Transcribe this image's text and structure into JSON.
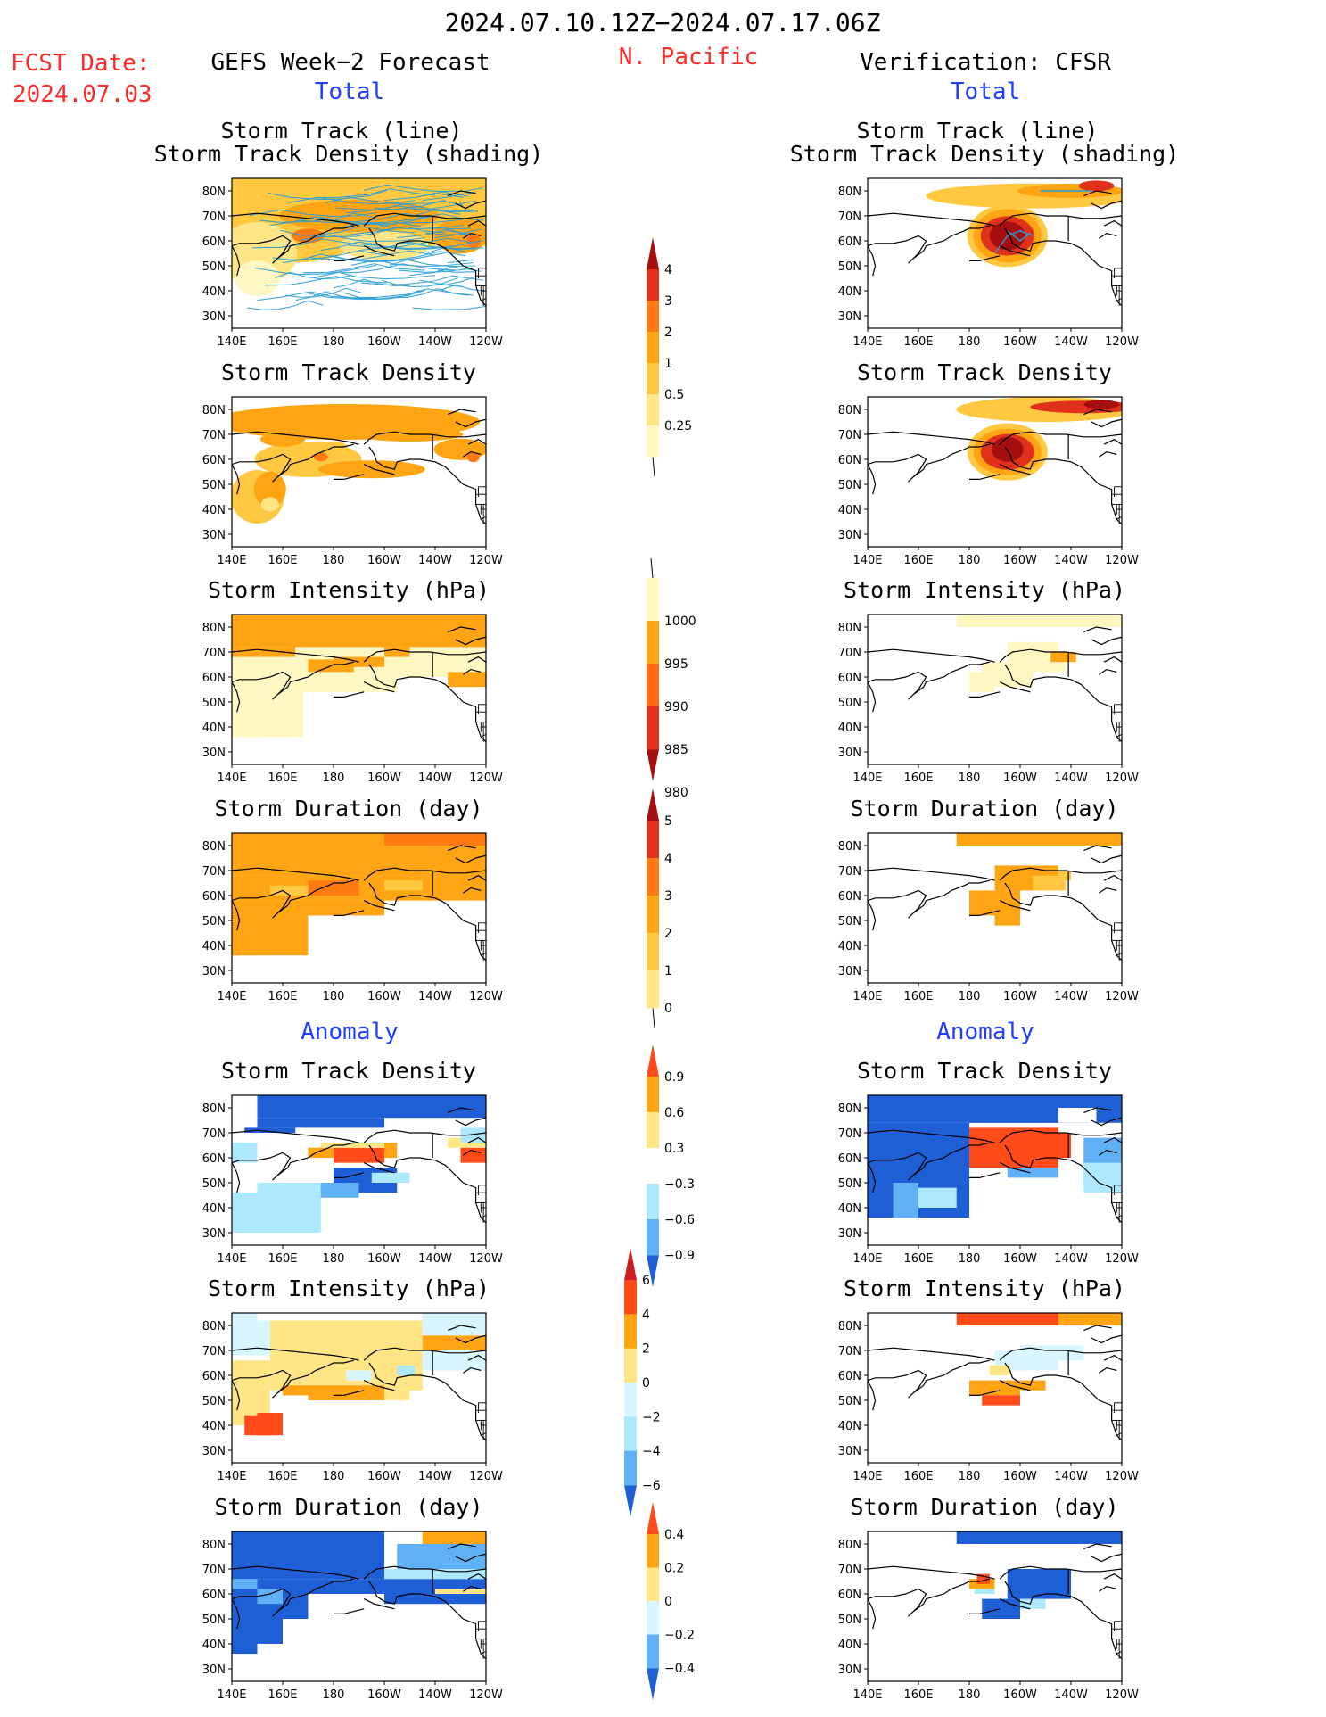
{
  "header": {
    "date_range": "2024.07.10.12Z−2024.07.17.06Z",
    "fcst_label": "FCST Date:",
    "fcst_date": "2024.07.03",
    "left_title": "GEFS Week−2 Forecast",
    "region": "N. Pacific",
    "right_title": "Verification: CFSR",
    "total_label": "Total",
    "anomaly_label": "Anomaly"
  },
  "panel_titles": {
    "track_line": "Storm Track (line)",
    "track_shading": "Storm Track Density (shading)",
    "density": "Storm Track Density",
    "intensity": "Storm Intensity (hPa)",
    "duration": "Storm Duration (day)"
  },
  "axes": {
    "lon_ticks": [
      "140E",
      "160E",
      "180",
      "160W",
      "140W",
      "120W"
    ],
    "lat_ticks": [
      "80N",
      "70N",
      "60N",
      "50N",
      "40N",
      "30N"
    ]
  },
  "colorbars": {
    "density_total": {
      "labels": [
        "4",
        "3",
        "2",
        "1",
        "0.5",
        "0.25"
      ],
      "colors": [
        "#a50f0f",
        "#e0321a",
        "#ff7a12",
        "#ffa413",
        "#ffc840",
        "#ffe586",
        "#fff7c2"
      ]
    },
    "intensity_total": {
      "labels": [
        "1000",
        "995",
        "990",
        "985",
        "980"
      ],
      "colors": [
        "#fff7c2",
        "#ffa413",
        "#ff6a12",
        "#e0321a",
        "#a50f0f"
      ]
    },
    "duration_total": {
      "labels": [
        "5",
        "4",
        "3",
        "2",
        "1",
        "0"
      ],
      "colors": [
        "#a50f0f",
        "#e0321a",
        "#ff7a12",
        "#ffa413",
        "#ffc840",
        "#ffe586"
      ]
    },
    "density_anom": {
      "labels": [
        "0.9",
        "0.6",
        "0.3",
        "−0.3",
        "−0.6",
        "−0.9"
      ],
      "colors": [
        "#ff4a1a",
        "#ffa413",
        "#ffe586",
        "#ffffff",
        "#aee8ff",
        "#5fb0f5",
        "#1f5fd6"
      ]
    },
    "intensity_anom": {
      "labels": [
        "6",
        "4",
        "2",
        "0",
        "−2",
        "−4",
        "−6"
      ],
      "colors": [
        "#cc1f1f",
        "#ff4a1a",
        "#ffa413",
        "#ffe586",
        "#d8f6ff",
        "#aee8ff",
        "#5fb0f5",
        "#1f5fd6"
      ]
    },
    "duration_anom": {
      "labels": [
        "0.4",
        "0.2",
        "0",
        "−0.2",
        "−0.4"
      ],
      "colors": [
        "#ff4a1a",
        "#ffa413",
        "#ffe586",
        "#d8f6ff",
        "#5fb0f5",
        "#1f5fd6"
      ]
    }
  }
}
